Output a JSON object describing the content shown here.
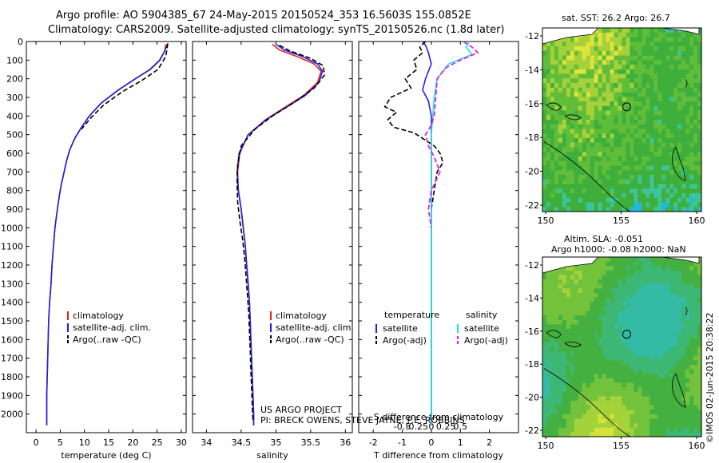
{
  "header": {
    "line1": "Argo profile: AO 5904385_67 24-May-2015 20150524_353 16.5603S 155.0852E",
    "line2": "Climatology: CARS2009. Satellite-adjusted climatology: synTS_20150526.nc (1.8d later)"
  },
  "colors": {
    "clim": "#e82020",
    "sat": "#2020e0",
    "argo": "#000000",
    "sal_sat": "#20e0e0",
    "sal_argo": "#e020e0",
    "sea1": "#3fae3f",
    "land": "#ffffff"
  },
  "chart_data": [
    {
      "type": "line",
      "id": "temperature",
      "xlabel": "temperature (deg C)",
      "ylabel": "",
      "xlim": [
        -2,
        31
      ],
      "ylim": [
        2100,
        0
      ],
      "xticks": [
        0,
        5,
        10,
        15,
        20,
        25,
        30
      ],
      "yticks": [
        0,
        100,
        200,
        300,
        400,
        500,
        600,
        700,
        800,
        900,
        1000,
        1100,
        1200,
        1300,
        1400,
        1500,
        1600,
        1700,
        1800,
        1900,
        2000
      ],
      "legend": [
        "climatology",
        "satellite-adj. clim.",
        "Argo(..raw -QC)"
      ],
      "series": [
        {
          "name": "climatology",
          "color": "clim",
          "x": [
            26.8,
            26.6,
            25.5,
            23.5,
            20.5,
            17,
            13.5,
            11,
            9.4,
            8,
            7,
            6.3,
            5.8,
            5.2,
            4.8,
            4.3,
            3.9,
            3.6,
            3.3,
            3.1,
            2.8,
            2.6,
            2.5,
            2.4,
            2.3,
            2.2,
            2.2,
            2.2
          ],
          "y": [
            15,
            50,
            100,
            150,
            200,
            260,
            330,
            400,
            460,
            520,
            580,
            640,
            700,
            770,
            830,
            920,
            1000,
            1100,
            1200,
            1300,
            1400,
            1500,
            1600,
            1700,
            1800,
            1900,
            2000,
            2060
          ]
        },
        {
          "name": "satellite-adj. clim.",
          "color": "sat",
          "x": [
            27.1,
            26.6,
            25.6,
            23.6,
            20.5,
            17,
            13.5,
            11,
            9.4,
            8,
            7,
            6.3,
            5.8,
            5.2,
            4.8,
            4.3,
            3.9,
            3.6,
            3.3,
            3.1,
            2.8,
            2.6,
            2.5,
            2.4,
            2.3,
            2.2,
            2.2,
            2.2
          ],
          "y": [
            15,
            50,
            100,
            150,
            200,
            260,
            330,
            400,
            460,
            520,
            580,
            640,
            700,
            770,
            830,
            920,
            1000,
            1100,
            1200,
            1300,
            1400,
            1500,
            1600,
            1700,
            1800,
            1900,
            2000,
            2060
          ]
        },
        {
          "name": "Argo(..raw -QC)",
          "color": "argo",
          "x": [
            27.2,
            27.1,
            26.8,
            25.2,
            21.8,
            17.8,
            14,
            11.3,
            9.4
          ],
          "y": [
            10,
            30,
            80,
            150,
            210,
            270,
            340,
            410,
            470
          ]
        }
      ]
    },
    {
      "type": "line",
      "id": "salinity",
      "xlabel": "salinity",
      "xlim": [
        33.8,
        36.1
      ],
      "ylim": [
        2100,
        0
      ],
      "xticks": [
        34,
        34.5,
        35,
        35.5,
        36
      ],
      "legend": [
        "climatology",
        "satellite-adj. clim.",
        "Argo(..raw -QC)"
      ],
      "series": [
        {
          "name": "climatology",
          "color": "clim",
          "x": [
            34.95,
            35.05,
            35.3,
            35.55,
            35.65,
            35.6,
            35.4,
            35.1,
            34.85,
            34.6,
            34.48,
            34.45,
            34.46,
            34.5,
            34.53,
            34.56,
            34.58,
            34.6,
            34.62,
            34.63,
            34.64,
            34.65,
            34.66,
            34.67,
            34.68,
            34.68
          ],
          "y": [
            15,
            45,
            80,
            120,
            160,
            220,
            290,
            360,
            420,
            500,
            600,
            700,
            800,
            900,
            1000,
            1100,
            1200,
            1300,
            1400,
            1500,
            1600,
            1700,
            1800,
            1900,
            2000,
            2060
          ]
        },
        {
          "name": "satellite-adj. clim.",
          "color": "sat",
          "x": [
            35.0,
            35.12,
            35.38,
            35.6,
            35.67,
            35.62,
            35.42,
            35.12,
            34.86,
            34.6,
            34.47,
            34.44,
            34.46,
            34.5,
            34.53,
            34.56,
            34.58,
            34.6,
            34.62,
            34.63,
            34.64,
            34.65,
            34.66,
            34.67,
            34.68,
            34.68
          ],
          "y": [
            15,
            45,
            80,
            120,
            160,
            220,
            290,
            360,
            420,
            500,
            600,
            700,
            800,
            900,
            1000,
            1100,
            1200,
            1300,
            1400,
            1500,
            1600,
            1700,
            1800,
            1900,
            2000,
            2060
          ]
        },
        {
          "name": "Argo(..raw -QC)",
          "color": "argo",
          "x": [
            35.05,
            35.2,
            35.5,
            35.68,
            35.7,
            35.55,
            35.25,
            34.95,
            34.7,
            34.5,
            34.45,
            34.44,
            34.45,
            34.48,
            34.52,
            34.55,
            34.57,
            34.59,
            34.61,
            34.62,
            34.63,
            34.64,
            34.65,
            34.66,
            34.67
          ],
          "y": [
            20,
            50,
            90,
            130,
            180,
            250,
            330,
            400,
            470,
            560,
            660,
            760,
            860,
            960,
            1060,
            1160,
            1260,
            1360,
            1460,
            1560,
            1660,
            1760,
            1860,
            1960,
            2040
          ]
        }
      ]
    },
    {
      "type": "line",
      "id": "difference",
      "xlabel": "T difference from climatology",
      "xlabel_top": "S difference from climatology",
      "xlim": [
        -2.5,
        3.0
      ],
      "ylim": [
        2100,
        0
      ],
      "xticks": [
        -2,
        -1,
        0,
        1,
        2
      ],
      "xticks_top": [
        "-0.5",
        "-0.25",
        "0",
        "0.25",
        "0.5"
      ],
      "legend_left_title": "temperature",
      "legend_right_title": "salinity",
      "legend": [
        "satellite",
        "Argo(-adj)",
        "satellite",
        "Argo(-adj)"
      ],
      "series": [
        {
          "name": "T satellite",
          "color": "sat",
          "x": [
            -0.3,
            -0.2,
            -0.1,
            0.0,
            -0.2,
            -0.3,
            -0.1,
            0,
            0,
            0,
            0,
            0,
            0,
            0,
            0
          ],
          "y": [
            0,
            20,
            60,
            120,
            200,
            260,
            320,
            400,
            500,
            700,
            900,
            1200,
            1500,
            1800,
            2060
          ]
        },
        {
          "name": "T Argo(-adj)",
          "color": "argo",
          "x": [
            -0.2,
            -0.4,
            -0.3,
            -0.6,
            -0.5,
            -0.9,
            -0.7,
            -1.4,
            -1.6,
            -1.2,
            -1.5,
            -1.3,
            -0.6,
            -0.3,
            0.1,
            0.3,
            0.4,
            0.2,
            0.1,
            0
          ],
          "y": [
            0,
            30,
            60,
            100,
            150,
            200,
            250,
            300,
            350,
            380,
            420,
            460,
            490,
            520,
            560,
            600,
            650,
            700,
            800,
            900
          ]
        },
        {
          "name": "S satellite",
          "color": "sal_sat",
          "x": [
            1.3,
            1.2,
            1.4,
            0.6,
            0.2,
            0.1,
            0.05,
            0.0,
            0.0,
            0.0,
            0.0,
            0.0,
            0.0,
            0.0,
            0.0
          ],
          "y": [
            0,
            30,
            70,
            120,
            200,
            300,
            400,
            500,
            700,
            900,
            1200,
            1500,
            1800,
            2000,
            2060
          ]
        },
        {
          "name": "S Argo(-adj)",
          "color": "sal_argo",
          "x": [
            1.1,
            1.4,
            1.6,
            1.0,
            0.5,
            0.2,
            0.15,
            0.1,
            0.0,
            -0.2,
            -0.1,
            0.1,
            0.3,
            0.0,
            -0.1,
            0.0
          ],
          "y": [
            0,
            30,
            60,
            100,
            140,
            200,
            300,
            400,
            450,
            500,
            560,
            620,
            700,
            800,
            900,
            1000
          ]
        }
      ]
    }
  ],
  "maps": {
    "sst": {
      "title": "sat. SST: 26.2 Argo: 26.7",
      "yticks": [
        -12,
        -14,
        -16,
        -18,
        -20,
        -22
      ],
      "xticks": [
        150,
        155,
        160
      ]
    },
    "sla": {
      "title1": "Altim. SLA: -0.051",
      "title2": "Argo h1000: -0.08 h2000: NaN",
      "yticks": [
        -12,
        -14,
        -16,
        -18,
        -20,
        -22
      ],
      "xticks": [
        150,
        155,
        160
      ]
    }
  },
  "footer": {
    "project": "US ARGO PROJECT",
    "pi": "PI: BRECK OWENS, STEVE JAYNE, P.E. ROBBINS",
    "stamp": "©IMOS 02-Jun-2015 20:38:22"
  }
}
